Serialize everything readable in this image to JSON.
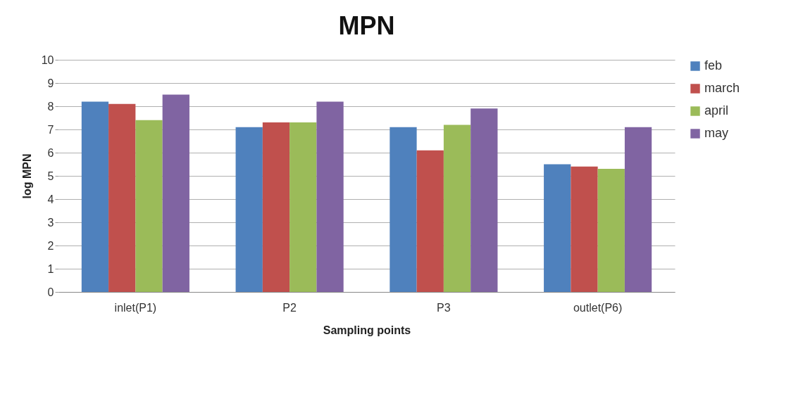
{
  "chart_data": {
    "type": "bar",
    "title": "MPN",
    "xlabel": "Sampling points",
    "ylabel": "log MPN",
    "categories": [
      "inlet(P1)",
      "P2",
      "P3",
      "outlet(P6)"
    ],
    "series": [
      {
        "name": "feb",
        "color": "#4f81bd",
        "values": [
          8.2,
          7.1,
          7.1,
          5.5
        ]
      },
      {
        "name": "march",
        "color": "#c0504d",
        "values": [
          8.1,
          7.3,
          6.1,
          5.4
        ]
      },
      {
        "name": "april",
        "color": "#9bbb59",
        "values": [
          7.4,
          7.3,
          7.2,
          5.3
        ]
      },
      {
        "name": "may",
        "color": "#8064a2",
        "values": [
          8.5,
          8.2,
          7.9,
          7.1
        ]
      }
    ],
    "ylim": [
      0,
      10
    ],
    "yticks": [
      0,
      1,
      2,
      3,
      4,
      5,
      6,
      7,
      8,
      9,
      10
    ],
    "grid": "y",
    "legend": "right"
  }
}
